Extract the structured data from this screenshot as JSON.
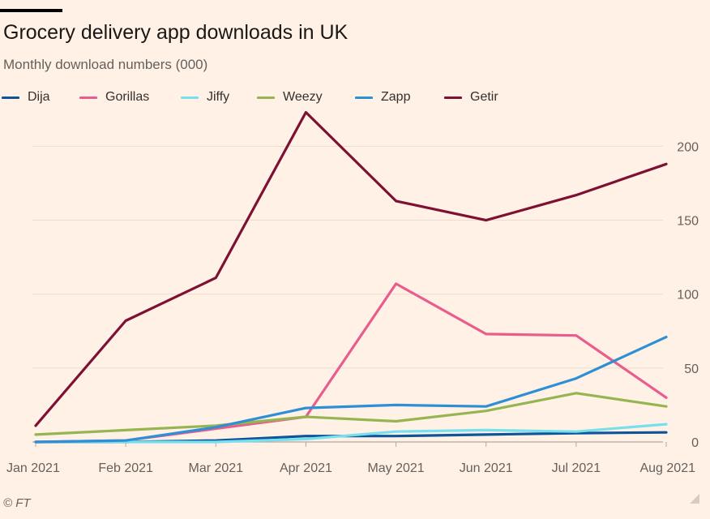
{
  "header": {
    "title": "Grocery delivery app downloads in UK",
    "subtitle": "Monthly download numbers (000)"
  },
  "footer": {
    "source": "© FT"
  },
  "chart_data": {
    "type": "line",
    "title": "Grocery delivery app downloads in UK",
    "subtitle": "Monthly download numbers (000)",
    "xlabel": "",
    "ylabel": "",
    "x": [
      "Jan 2021",
      "Feb 2021",
      "Mar 2021",
      "Apr 2021",
      "May 2021",
      "Jun 2021",
      "Jul 2021",
      "Aug 2021"
    ],
    "ylim": [
      0,
      220
    ],
    "yticks": [
      0,
      50,
      100,
      150,
      200
    ],
    "ytick_labels": [
      "0",
      "50",
      "100",
      "150",
      "200"
    ],
    "yaxis_side": "right",
    "grid": true,
    "legend_position": "top",
    "series": [
      {
        "name": "Dija",
        "color": "#0f5499",
        "values": [
          0,
          0,
          1,
          4,
          4,
          5,
          6,
          6.5
        ]
      },
      {
        "name": "Gorillas",
        "color": "#e95d8c",
        "values": [
          0,
          1,
          9,
          17,
          107,
          73,
          72,
          30
        ]
      },
      {
        "name": "Jiffy",
        "color": "#76e0ee",
        "values": [
          0,
          0,
          0,
          2,
          7,
          8,
          7,
          12
        ]
      },
      {
        "name": "Weezy",
        "color": "#96b552",
        "values": [
          5,
          8,
          11,
          17,
          14,
          21,
          33,
          24
        ]
      },
      {
        "name": "Zapp",
        "color": "#2f8fd5",
        "values": [
          0,
          1,
          10,
          23,
          25,
          24,
          43,
          71
        ]
      },
      {
        "name": "Getir",
        "color": "#7d1033",
        "values": [
          11,
          82,
          111,
          223,
          163,
          150,
          167,
          188
        ]
      }
    ]
  }
}
